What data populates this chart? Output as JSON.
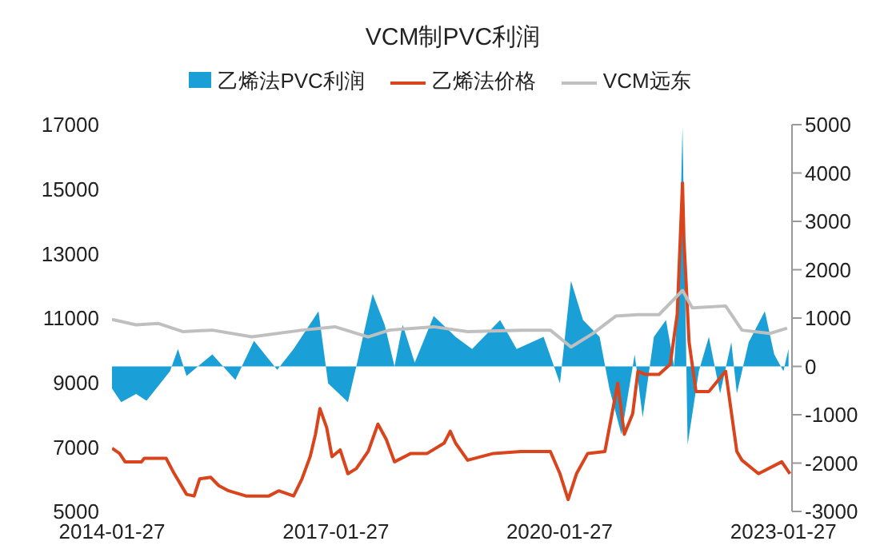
{
  "chart_data": {
    "type": "line",
    "title": "VCM制PVC利润",
    "legend": "top",
    "xlim": [
      "2014-01-27",
      "2023-03-10"
    ],
    "xticks": [
      "2014-01-27",
      "2017-01-27",
      "2020-01-27",
      "2023-01-27"
    ],
    "ylim": [
      5000,
      17000
    ],
    "yticks": [
      5000,
      7000,
      9000,
      11000,
      13000,
      15000,
      17000
    ],
    "y2lim": [
      -3000,
      5000
    ],
    "y2ticks": [
      -3000,
      -2000,
      -1000,
      0,
      1000,
      2000,
      3000,
      4000,
      5000
    ],
    "series": [
      {
        "name": "乙烯法PVC利润",
        "type": "area",
        "axis": "y2",
        "color": "#1aa0d6",
        "x": [
          "2014-01-27",
          "2014-03-13",
          "2014-05-25",
          "2014-07-15",
          "2014-11-07",
          "2014-12-16",
          "2015-01-27",
          "2015-06-02",
          "2015-09-23",
          "2015-12-23",
          "2016-04-15",
          "2016-07-04",
          "2016-11-03",
          "2016-12-20",
          "2017-03-27",
          "2017-05-07",
          "2017-07-26",
          "2017-09-23",
          "2017-11-10",
          "2017-12-20",
          "2018-02-17",
          "2018-05-21",
          "2018-08-10",
          "2018-09-05",
          "2018-11-25",
          "2019-04-11",
          "2019-07-01",
          "2019-11-10",
          "2020-01-29",
          "2020-03-23",
          "2020-05-21",
          "2020-08-10",
          "2020-09-27",
          "2020-11-25",
          "2021-01-29",
          "2021-03-09",
          "2021-05-03",
          "2021-07-01",
          "2021-08-10",
          "2021-09-02",
          "2021-09-20",
          "2021-10-15",
          "2021-12-09",
          "2022-01-27",
          "2022-03-23",
          "2022-05-17",
          "2022-06-13",
          "2022-08-10",
          "2022-10-28",
          "2022-12-13",
          "2023-01-27",
          "2023-02-21"
        ],
        "values": [
          -460,
          -740,
          -570,
          -710,
          -100,
          360,
          -200,
          250,
          -280,
          530,
          -70,
          360,
          1140,
          -350,
          -740,
          0,
          1500,
          860,
          0,
          860,
          80,
          1040,
          720,
          610,
          360,
          960,
          360,
          610,
          -350,
          1770,
          960,
          610,
          -460,
          -1410,
          250,
          -1050,
          610,
          960,
          0,
          1670,
          4960,
          -1620,
          -100,
          610,
          -560,
          500,
          -560,
          500,
          1140,
          250,
          -100,
          360
        ]
      },
      {
        "name": "乙烯法价格",
        "color": "#d9441c",
        "x": [
          "2014-01-27",
          "2014-03-05",
          "2014-04-01",
          "2014-06-20",
          "2014-07-04",
          "2014-10-19",
          "2014-11-28",
          "2015-01-27",
          "2015-03-05",
          "2015-04-01",
          "2015-05-25",
          "2015-07-04",
          "2015-08-21",
          "2015-11-14",
          "2016-03-05",
          "2016-04-22",
          "2016-07-04",
          "2016-08-14",
          "2016-09-23",
          "2016-10-19",
          "2016-11-10",
          "2016-12-13",
          "2017-01-08",
          "2017-02-17",
          "2017-03-27",
          "2017-05-07",
          "2017-07-04",
          "2017-08-21",
          "2017-10-01",
          "2017-11-10",
          "2018-01-29",
          "2018-04-19",
          "2018-07-11",
          "2018-08-10",
          "2018-09-05",
          "2018-11-03",
          "2019-03-09",
          "2019-07-22",
          "2019-12-13",
          "2020-01-29",
          "2020-03-09",
          "2020-04-19",
          "2020-06-13",
          "2020-09-05",
          "2020-11-07",
          "2020-12-09",
          "2021-01-19",
          "2021-02-14",
          "2021-03-23",
          "2021-05-28",
          "2021-07-22",
          "2021-08-25",
          "2021-09-20",
          "2021-09-27",
          "2021-10-22",
          "2021-11-25",
          "2022-01-27",
          "2022-04-19",
          "2022-06-13",
          "2022-07-08",
          "2022-09-27",
          "2023-01-19",
          "2023-02-28"
        ],
        "values": [
          6960,
          6800,
          6540,
          6540,
          6650,
          6650,
          6170,
          5530,
          5480,
          6010,
          6060,
          5800,
          5640,
          5480,
          5480,
          5640,
          5480,
          6010,
          6700,
          7390,
          8190,
          7600,
          6700,
          6910,
          6170,
          6330,
          6860,
          7710,
          7230,
          6540,
          6800,
          6800,
          7120,
          7490,
          7120,
          6590,
          6800,
          6860,
          6860,
          6170,
          5370,
          6170,
          6800,
          6860,
          8980,
          7390,
          8030,
          9350,
          9250,
          9250,
          9570,
          11110,
          15190,
          13440,
          10260,
          8720,
          8720,
          9350,
          6860,
          6590,
          6170,
          6540,
          6170
        ]
      },
      {
        "name": "VCM远东",
        "type": "line",
        "axis": "y2",
        "color": "#bfbfbf",
        "x": [
          "2014-01-27",
          "2014-05-25",
          "2014-09-09",
          "2015-01-08",
          "2015-06-02",
          "2015-12-13",
          "2016-08-14",
          "2017-01-22",
          "2017-07-04",
          "2017-10-15",
          "2018-05-21",
          "2018-11-03",
          "2019-07-26",
          "2019-12-13",
          "2020-03-23",
          "2020-07-08",
          "2020-10-28",
          "2021-02-14",
          "2021-05-28",
          "2021-09-20",
          "2021-11-07",
          "2022-04-19",
          "2022-07-08",
          "2022-11-21",
          "2023-02-14"
        ],
        "values": [
          970,
          860,
          890,
          720,
          750,
          610,
          750,
          820,
          610,
          750,
          820,
          720,
          750,
          750,
          400,
          680,
          1040,
          1070,
          1070,
          1570,
          1210,
          1250,
          750,
          680,
          790
        ]
      }
    ]
  }
}
